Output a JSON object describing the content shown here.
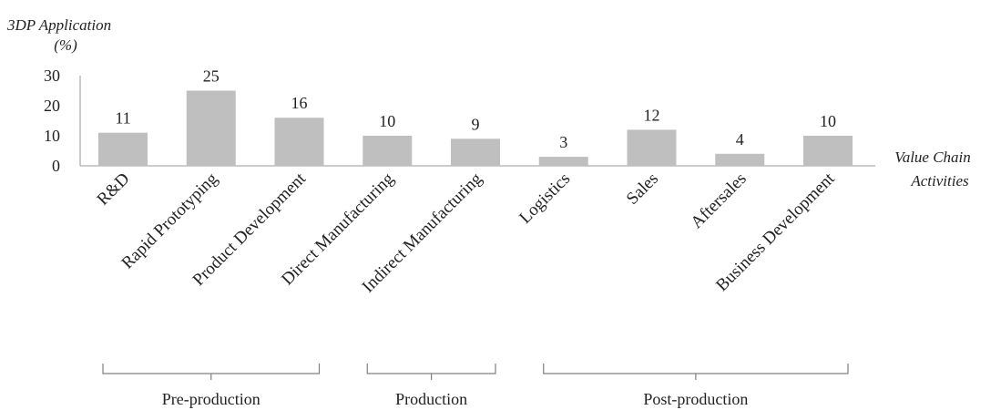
{
  "chart_data": {
    "type": "bar",
    "ylabel_line1": "3DP Application",
    "ylabel_line2": "(%)",
    "xlabel_line1": "Value Chain",
    "xlabel_line2": "Activities",
    "ylim": [
      0,
      30
    ],
    "yticks": [
      0,
      10,
      20,
      30
    ],
    "grid": false,
    "categories": [
      "R&D",
      "Rapid Prototyping",
      "Product Development",
      "Direct Manufacturing",
      "Indirect Manufacturing",
      "Logistics",
      "Sales",
      "Aftersales",
      "Business Development"
    ],
    "values": [
      11,
      25,
      16,
      10,
      9,
      3,
      12,
      4,
      10
    ],
    "bar_color": "#bfbfbf",
    "groups": [
      {
        "label": "Pre-production",
        "categories": [
          "R&D",
          "Rapid Prototyping",
          "Product Development"
        ]
      },
      {
        "label": "Production",
        "categories": [
          "Direct Manufacturing",
          "Indirect Manufacturing"
        ]
      },
      {
        "label": "Post-production",
        "categories": [
          "Logistics",
          "Sales",
          "Aftersales",
          "Business Development"
        ]
      }
    ]
  }
}
